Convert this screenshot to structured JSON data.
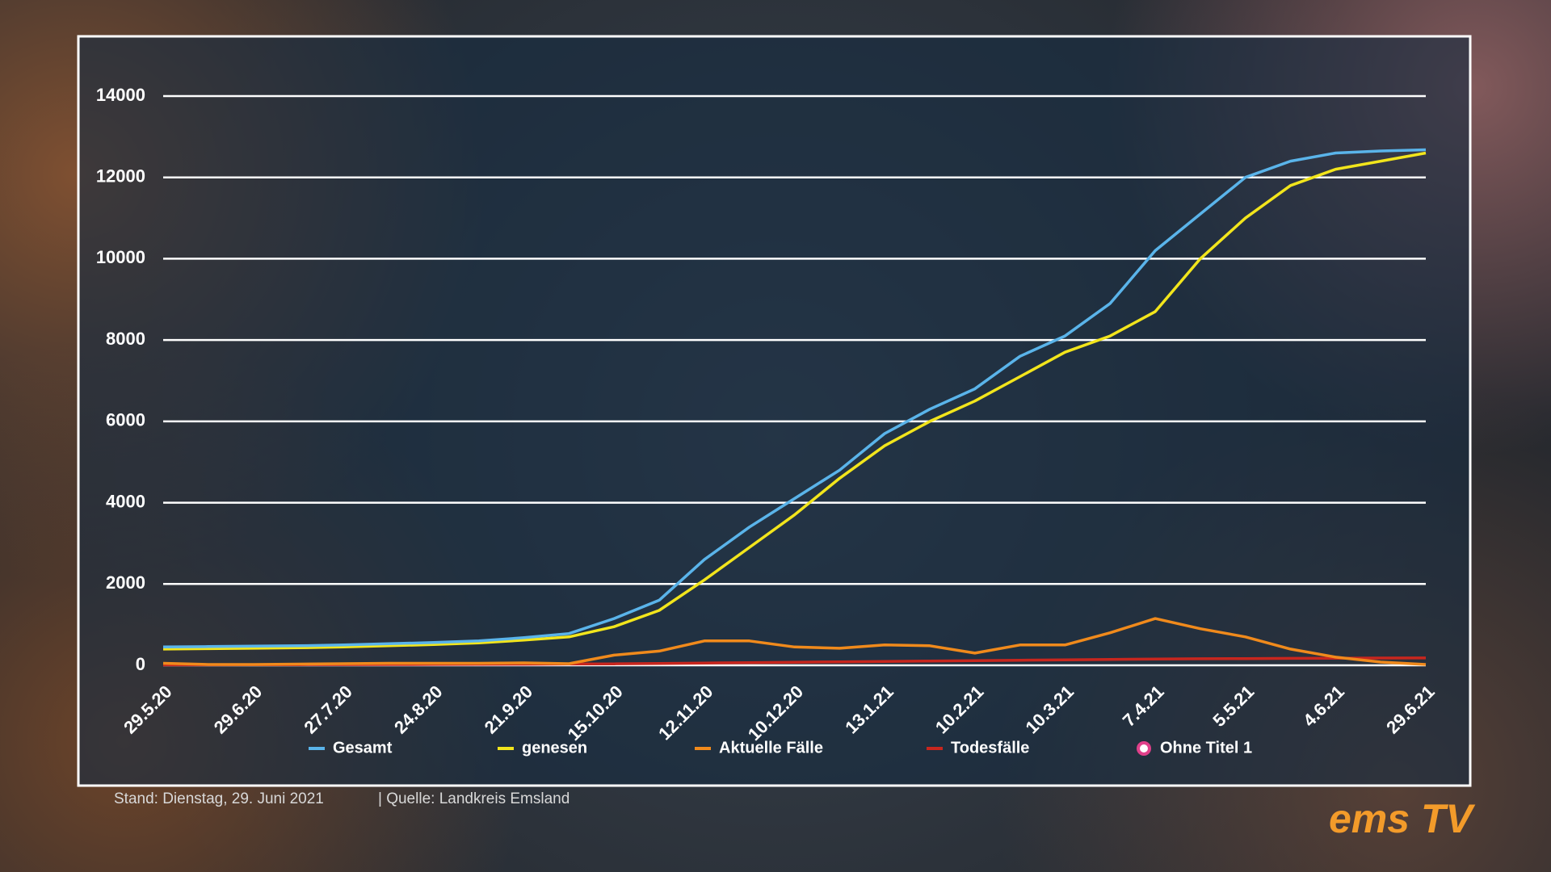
{
  "chart_data": {
    "type": "line",
    "categories": [
      "29.5.20",
      null,
      "29.6.20",
      null,
      "27.7.20",
      null,
      "24.8.20",
      null,
      "21.9.20",
      null,
      "15.10.20",
      null,
      "12.11.20",
      null,
      "10.12.20",
      null,
      "13.1.21",
      null,
      "10.2.21",
      null,
      "10.3.21",
      null,
      "7.4.21",
      null,
      "5.5.21",
      null,
      "4.6.21",
      null,
      "29.6.21"
    ],
    "series": [
      {
        "name": "Gesamt",
        "color": "#5ab4ea",
        "values": [
          450,
          460,
          470,
          480,
          500,
          530,
          560,
          600,
          680,
          780,
          1150,
          1600,
          2600,
          3400,
          4100,
          4800,
          5700,
          6300,
          6800,
          7600,
          8100,
          8900,
          10200,
          11100,
          12000,
          12400,
          12600,
          12650,
          12680
        ]
      },
      {
        "name": "genesen",
        "color": "#f2e51c",
        "values": [
          400,
          410,
          420,
          430,
          450,
          480,
          510,
          550,
          620,
          700,
          950,
          1350,
          2100,
          2900,
          3700,
          4600,
          5400,
          6000,
          6500,
          7100,
          7700,
          8100,
          8700,
          10000,
          11000,
          11800,
          12200,
          12400,
          12600
        ]
      },
      {
        "name": "Aktuelle Fälle",
        "color": "#f08a1c",
        "values": [
          50,
          20,
          20,
          30,
          40,
          50,
          50,
          50,
          60,
          40,
          250,
          350,
          600,
          600,
          450,
          420,
          500,
          480,
          300,
          500,
          500,
          800,
          1150,
          900,
          700,
          400,
          200,
          80,
          20
        ]
      },
      {
        "name": "Todesfälle",
        "color": "#c8261e",
        "values": [
          10,
          12,
          14,
          16,
          18,
          20,
          22,
          25,
          28,
          32,
          36,
          45,
          55,
          65,
          75,
          85,
          95,
          105,
          115,
          125,
          135,
          145,
          155,
          160,
          165,
          170,
          175,
          178,
          180
        ]
      },
      {
        "name": "Ohne Titel 1",
        "color": "#e0408a",
        "marker": "circle",
        "values": [
          null,
          null,
          null,
          null,
          null,
          null,
          null,
          null,
          null,
          null,
          null,
          null,
          null,
          null,
          null,
          null,
          null,
          null,
          null,
          null,
          null,
          null,
          null,
          null,
          null,
          null,
          null,
          null,
          null
        ]
      }
    ],
    "ylim": [
      0,
      14000
    ],
    "yticks": [
      0,
      2000,
      4000,
      6000,
      8000,
      10000,
      12000,
      14000
    ],
    "grid": true,
    "legend": "bottom"
  },
  "footer": {
    "stand": "Stand:  Dienstag, 29. Juni 2021",
    "quelle": "|  Quelle:   Landkreis Emsland"
  },
  "logo": "ems TV"
}
